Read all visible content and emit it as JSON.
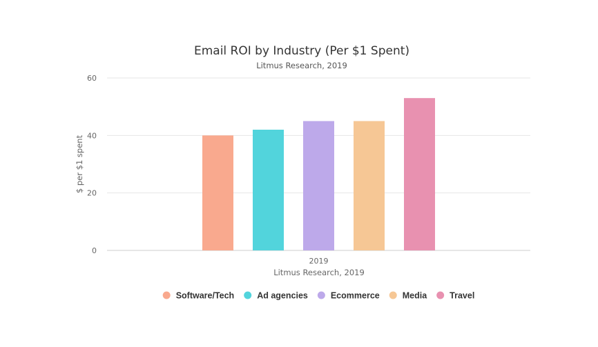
{
  "chart_data": {
    "type": "bar",
    "title": "Email ROI by Industry (Per $1 Spent)",
    "subtitle": "Litmus Research, 2019",
    "categories": [
      "2019"
    ],
    "xlabel": "Litmus Research, 2019",
    "ylabel": "$ per $1 spent",
    "ylim": [
      0,
      60
    ],
    "yticks": [
      0,
      20,
      40,
      60
    ],
    "grid": true,
    "legend_position": "bottom",
    "series": [
      {
        "name": "Software/Tech",
        "values": [
          40
        ],
        "color": "#F9A98E"
      },
      {
        "name": "Ad agencies",
        "values": [
          42
        ],
        "color": "#52D4DC"
      },
      {
        "name": "Ecommerce",
        "values": [
          45
        ],
        "color": "#BDA9EA"
      },
      {
        "name": "Media",
        "values": [
          45
        ],
        "color": "#F6C795"
      },
      {
        "name": "Travel",
        "values": [
          53
        ],
        "color": "#E891B0"
      }
    ]
  }
}
